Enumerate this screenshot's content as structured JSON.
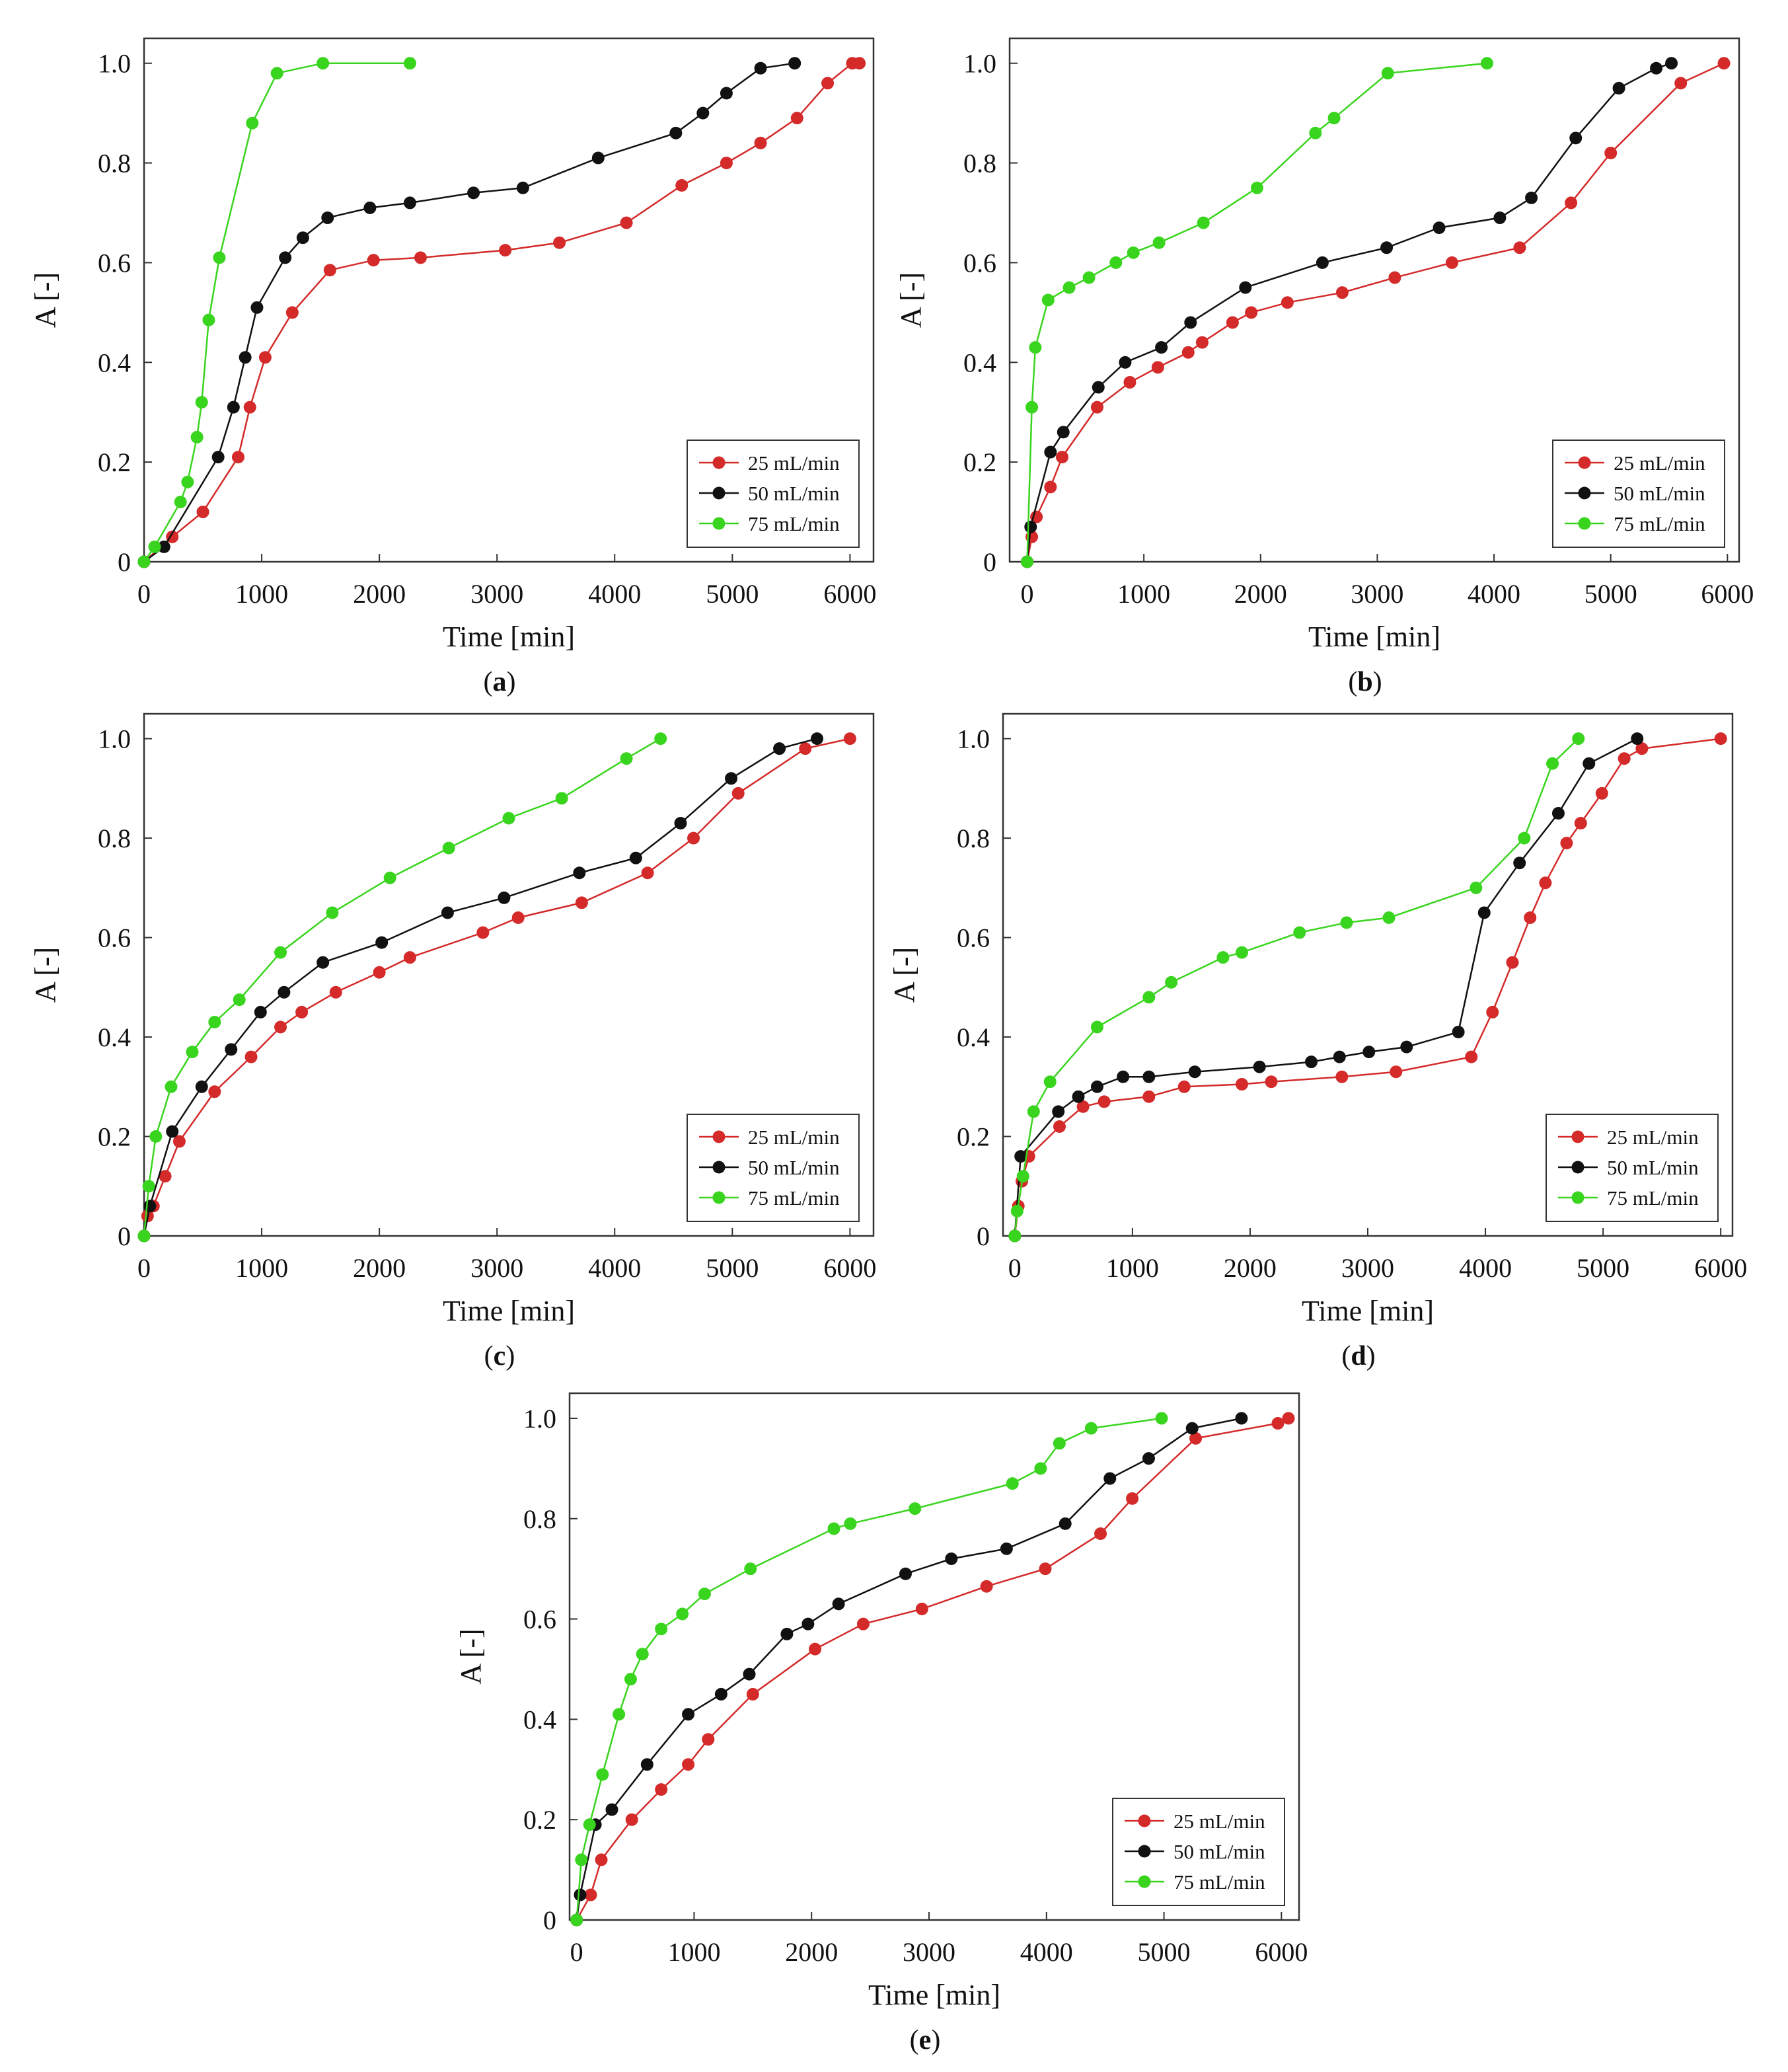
{
  "figure": {
    "series_colors": {
      "25 mL/min": "#d42a2a",
      "50 mL/min": "#111111",
      "75 mL/min": "#39d51e"
    }
  },
  "chart_data": [
    {
      "id": "a",
      "type": "line",
      "caption_letter": "a",
      "xlabel": "Time [min]",
      "ylabel": "A [-]",
      "xlim": [
        0,
        6200
      ],
      "ylim": [
        0,
        1.05
      ],
      "x_ticks": [
        0,
        1000,
        2000,
        3000,
        4000,
        5000,
        6000
      ],
      "y_ticks": [
        0,
        0.2,
        0.4,
        0.6,
        0.8,
        1.0
      ],
      "y_tick_labels": [
        "0",
        "0.2",
        "0.4",
        "0.6",
        "0.8",
        "1.0"
      ],
      "legend_position": "bottom-right",
      "series": [
        {
          "name": "25 mL/min",
          "color": "#d42a2a",
          "x": [
            0,
            240,
            500,
            800,
            900,
            1030,
            1260,
            1580,
            1950,
            2350,
            3070,
            3530,
            4100,
            4570,
            4950,
            5240,
            5550,
            5810,
            6020,
            6080
          ],
          "y": [
            0,
            0.05,
            0.1,
            0.21,
            0.31,
            0.41,
            0.5,
            0.585,
            0.605,
            0.61,
            0.625,
            0.64,
            0.68,
            0.755,
            0.8,
            0.84,
            0.89,
            0.96,
            1.0,
            1.0
          ]
        },
        {
          "name": "50 mL/min",
          "color": "#111111",
          "x": [
            0,
            170,
            630,
            760,
            860,
            960,
            1200,
            1350,
            1560,
            1920,
            2260,
            2800,
            3220,
            3860,
            4520,
            4750,
            4950,
            5240,
            5530
          ],
          "y": [
            0,
            0.03,
            0.21,
            0.31,
            0.41,
            0.51,
            0.61,
            0.65,
            0.69,
            0.71,
            0.72,
            0.74,
            0.75,
            0.81,
            0.86,
            0.9,
            0.94,
            0.99,
            1.0
          ]
        },
        {
          "name": "75 mL/min",
          "color": "#39d51e",
          "x": [
            0,
            90,
            310,
            370,
            450,
            490,
            550,
            640,
            920,
            1130,
            1520,
            2260
          ],
          "y": [
            0,
            0.03,
            0.12,
            0.16,
            0.25,
            0.32,
            0.485,
            0.61,
            0.88,
            0.98,
            1.0,
            1.0
          ]
        }
      ]
    },
    {
      "id": "b",
      "type": "line",
      "caption_letter": "b",
      "xlabel": "Time [min]",
      "ylabel": "A [-]",
      "xlim": [
        -150,
        6100
      ],
      "ylim": [
        0,
        1.05
      ],
      "x_ticks": [
        0,
        1000,
        2000,
        3000,
        4000,
        5000,
        6000
      ],
      "y_ticks": [
        0,
        0.2,
        0.4,
        0.6,
        0.8,
        1.0
      ],
      "y_tick_labels": [
        "0",
        "0.2",
        "0.4",
        "0.6",
        "0.8",
        "1.0"
      ],
      "legend_position": "bottom-right",
      "series": [
        {
          "name": "25 mL/min",
          "color": "#d42a2a",
          "x": [
            0,
            40,
            80,
            200,
            300,
            600,
            880,
            1120,
            1380,
            1500,
            1760,
            1920,
            2230,
            2700,
            3150,
            3640,
            4220,
            4660,
            5000,
            5600,
            5970
          ],
          "y": [
            0,
            0.05,
            0.09,
            0.15,
            0.21,
            0.31,
            0.36,
            0.39,
            0.42,
            0.44,
            0.48,
            0.5,
            0.52,
            0.54,
            0.57,
            0.6,
            0.63,
            0.72,
            0.82,
            0.96,
            1.0
          ]
        },
        {
          "name": "50 mL/min",
          "color": "#111111",
          "x": [
            0,
            30,
            200,
            310,
            610,
            840,
            1150,
            1400,
            1870,
            2530,
            3080,
            3530,
            4050,
            4320,
            4700,
            5070,
            5390,
            5520
          ],
          "y": [
            0,
            0.07,
            0.22,
            0.26,
            0.35,
            0.4,
            0.43,
            0.48,
            0.55,
            0.6,
            0.63,
            0.67,
            0.69,
            0.73,
            0.85,
            0.95,
            0.99,
            1.0
          ]
        },
        {
          "name": "75 mL/min",
          "color": "#39d51e",
          "x": [
            0,
            40,
            70,
            180,
            360,
            530,
            760,
            910,
            1130,
            1510,
            1970,
            2470,
            2630,
            3090,
            3940
          ],
          "y": [
            0,
            0.31,
            0.43,
            0.525,
            0.55,
            0.57,
            0.6,
            0.62,
            0.64,
            0.68,
            0.75,
            0.86,
            0.89,
            0.98,
            1.0
          ]
        }
      ]
    },
    {
      "id": "c",
      "type": "line",
      "caption_letter": "c",
      "xlabel": "Time [min]",
      "ylabel": "A [-]",
      "xlim": [
        0,
        6200
      ],
      "ylim": [
        0,
        1.05
      ],
      "x_ticks": [
        0,
        1000,
        2000,
        3000,
        4000,
        5000,
        6000
      ],
      "y_ticks": [
        0,
        0.2,
        0.4,
        0.6,
        0.8,
        1.0
      ],
      "y_tick_labels": [
        "0",
        "0.2",
        "0.4",
        "0.6",
        "0.8",
        "1.0"
      ],
      "legend_position": "bottom-right",
      "series": [
        {
          "name": "25 mL/min",
          "color": "#d42a2a",
          "x": [
            0,
            30,
            80,
            180,
            300,
            600,
            910,
            1160,
            1340,
            1630,
            2000,
            2260,
            2880,
            3180,
            3720,
            4280,
            4670,
            5050,
            5620,
            6000
          ],
          "y": [
            0,
            0.04,
            0.06,
            0.12,
            0.19,
            0.29,
            0.36,
            0.42,
            0.45,
            0.49,
            0.53,
            0.56,
            0.61,
            0.64,
            0.67,
            0.73,
            0.8,
            0.89,
            0.98,
            1.0
          ]
        },
        {
          "name": "50 mL/min",
          "color": "#111111",
          "x": [
            0,
            50,
            240,
            490,
            740,
            990,
            1190,
            1520,
            2020,
            2580,
            3060,
            3700,
            4180,
            4560,
            4990,
            5400,
            5720
          ],
          "y": [
            0,
            0.06,
            0.21,
            0.3,
            0.375,
            0.45,
            0.49,
            0.55,
            0.59,
            0.65,
            0.68,
            0.73,
            0.76,
            0.83,
            0.92,
            0.98,
            1.0
          ]
        },
        {
          "name": "75 mL/min",
          "color": "#39d51e",
          "x": [
            0,
            40,
            100,
            230,
            410,
            600,
            810,
            1160,
            1600,
            2090,
            2590,
            3100,
            3550,
            4100,
            4390
          ],
          "y": [
            0,
            0.1,
            0.2,
            0.3,
            0.37,
            0.43,
            0.475,
            0.57,
            0.65,
            0.72,
            0.78,
            0.84,
            0.88,
            0.96,
            1.0
          ]
        }
      ]
    },
    {
      "id": "d",
      "type": "line",
      "caption_letter": "d",
      "xlabel": "Time [min]",
      "ylabel": "A [-]",
      "xlim": [
        -100,
        6100
      ],
      "ylim": [
        0,
        1.05
      ],
      "x_ticks": [
        0,
        1000,
        2000,
        3000,
        4000,
        5000,
        6000
      ],
      "y_ticks": [
        0,
        0.2,
        0.4,
        0.6,
        0.8,
        1.0
      ],
      "y_tick_labels": [
        "0",
        "0.2",
        "0.4",
        "0.6",
        "0.8",
        "1.0"
      ],
      "legend_position": "bottom-right",
      "series": [
        {
          "name": "25 mL/min",
          "color": "#d42a2a",
          "x": [
            0,
            30,
            60,
            120,
            380,
            580,
            760,
            1140,
            1440,
            1930,
            2180,
            2780,
            3240,
            3880,
            4060,
            4230,
            4380,
            4510,
            4690,
            4810,
            4990,
            5180,
            5330,
            6000
          ],
          "y": [
            0,
            0.06,
            0.11,
            0.16,
            0.22,
            0.26,
            0.27,
            0.28,
            0.3,
            0.305,
            0.31,
            0.32,
            0.33,
            0.36,
            0.45,
            0.55,
            0.64,
            0.71,
            0.79,
            0.83,
            0.89,
            0.96,
            0.98,
            1.0
          ]
        },
        {
          "name": "50 mL/min",
          "color": "#111111",
          "x": [
            0,
            50,
            370,
            540,
            700,
            920,
            1140,
            1530,
            2080,
            2520,
            2760,
            3010,
            3330,
            3770,
            3990,
            4290,
            4620,
            4880,
            5290
          ],
          "y": [
            0,
            0.16,
            0.25,
            0.28,
            0.3,
            0.32,
            0.32,
            0.33,
            0.34,
            0.35,
            0.36,
            0.37,
            0.38,
            0.41,
            0.65,
            0.75,
            0.85,
            0.95,
            1.0
          ]
        },
        {
          "name": "75 mL/min",
          "color": "#39d51e",
          "x": [
            0,
            20,
            70,
            160,
            300,
            700,
            1140,
            1330,
            1770,
            1930,
            2420,
            2820,
            3180,
            3920,
            4330,
            4570,
            4790
          ],
          "y": [
            0,
            0.05,
            0.12,
            0.25,
            0.31,
            0.42,
            0.48,
            0.51,
            0.56,
            0.57,
            0.61,
            0.63,
            0.64,
            0.7,
            0.8,
            0.95,
            1.0
          ]
        }
      ]
    },
    {
      "id": "e",
      "type": "line",
      "caption_letter": "e",
      "xlabel": "Time [min]",
      "ylabel": "A [-]",
      "xlim": [
        -60,
        6150
      ],
      "ylim": [
        0,
        1.05
      ],
      "x_ticks": [
        0,
        1000,
        2000,
        3000,
        4000,
        5000,
        6000
      ],
      "y_ticks": [
        0,
        0.2,
        0.4,
        0.6,
        0.8,
        1.0
      ],
      "y_tick_labels": [
        "0",
        "0.2",
        "0.4",
        "0.6",
        "0.8",
        "1.0"
      ],
      "legend_position": "bottom-right",
      "series": [
        {
          "name": "25 mL/min",
          "color": "#d42a2a",
          "x": [
            0,
            120,
            210,
            470,
            720,
            950,
            1120,
            1500,
            2030,
            2440,
            2940,
            3490,
            3990,
            4460,
            4730,
            5270,
            5970,
            6060
          ],
          "y": [
            0,
            0.05,
            0.12,
            0.2,
            0.26,
            0.31,
            0.36,
            0.45,
            0.54,
            0.59,
            0.62,
            0.665,
            0.7,
            0.77,
            0.84,
            0.96,
            0.99,
            1.0
          ]
        },
        {
          "name": "50 mL/min",
          "color": "#111111",
          "x": [
            0,
            30,
            160,
            300,
            600,
            950,
            1230,
            1470,
            1790,
            1970,
            2230,
            2800,
            3190,
            3660,
            4160,
            4540,
            4870,
            5240,
            5660
          ],
          "y": [
            0,
            0.05,
            0.19,
            0.22,
            0.31,
            0.41,
            0.45,
            0.49,
            0.57,
            0.59,
            0.63,
            0.69,
            0.72,
            0.74,
            0.79,
            0.88,
            0.92,
            0.98,
            1.0
          ]
        },
        {
          "name": "75 mL/min",
          "color": "#39d51e",
          "x": [
            0,
            40,
            110,
            220,
            360,
            460,
            560,
            720,
            900,
            1090,
            1480,
            2190,
            2330,
            2880,
            3710,
            3950,
            4110,
            4380,
            4980
          ],
          "y": [
            0,
            0.12,
            0.19,
            0.29,
            0.41,
            0.48,
            0.53,
            0.58,
            0.61,
            0.65,
            0.7,
            0.78,
            0.79,
            0.82,
            0.87,
            0.9,
            0.95,
            0.98,
            1.0
          ]
        }
      ]
    }
  ]
}
